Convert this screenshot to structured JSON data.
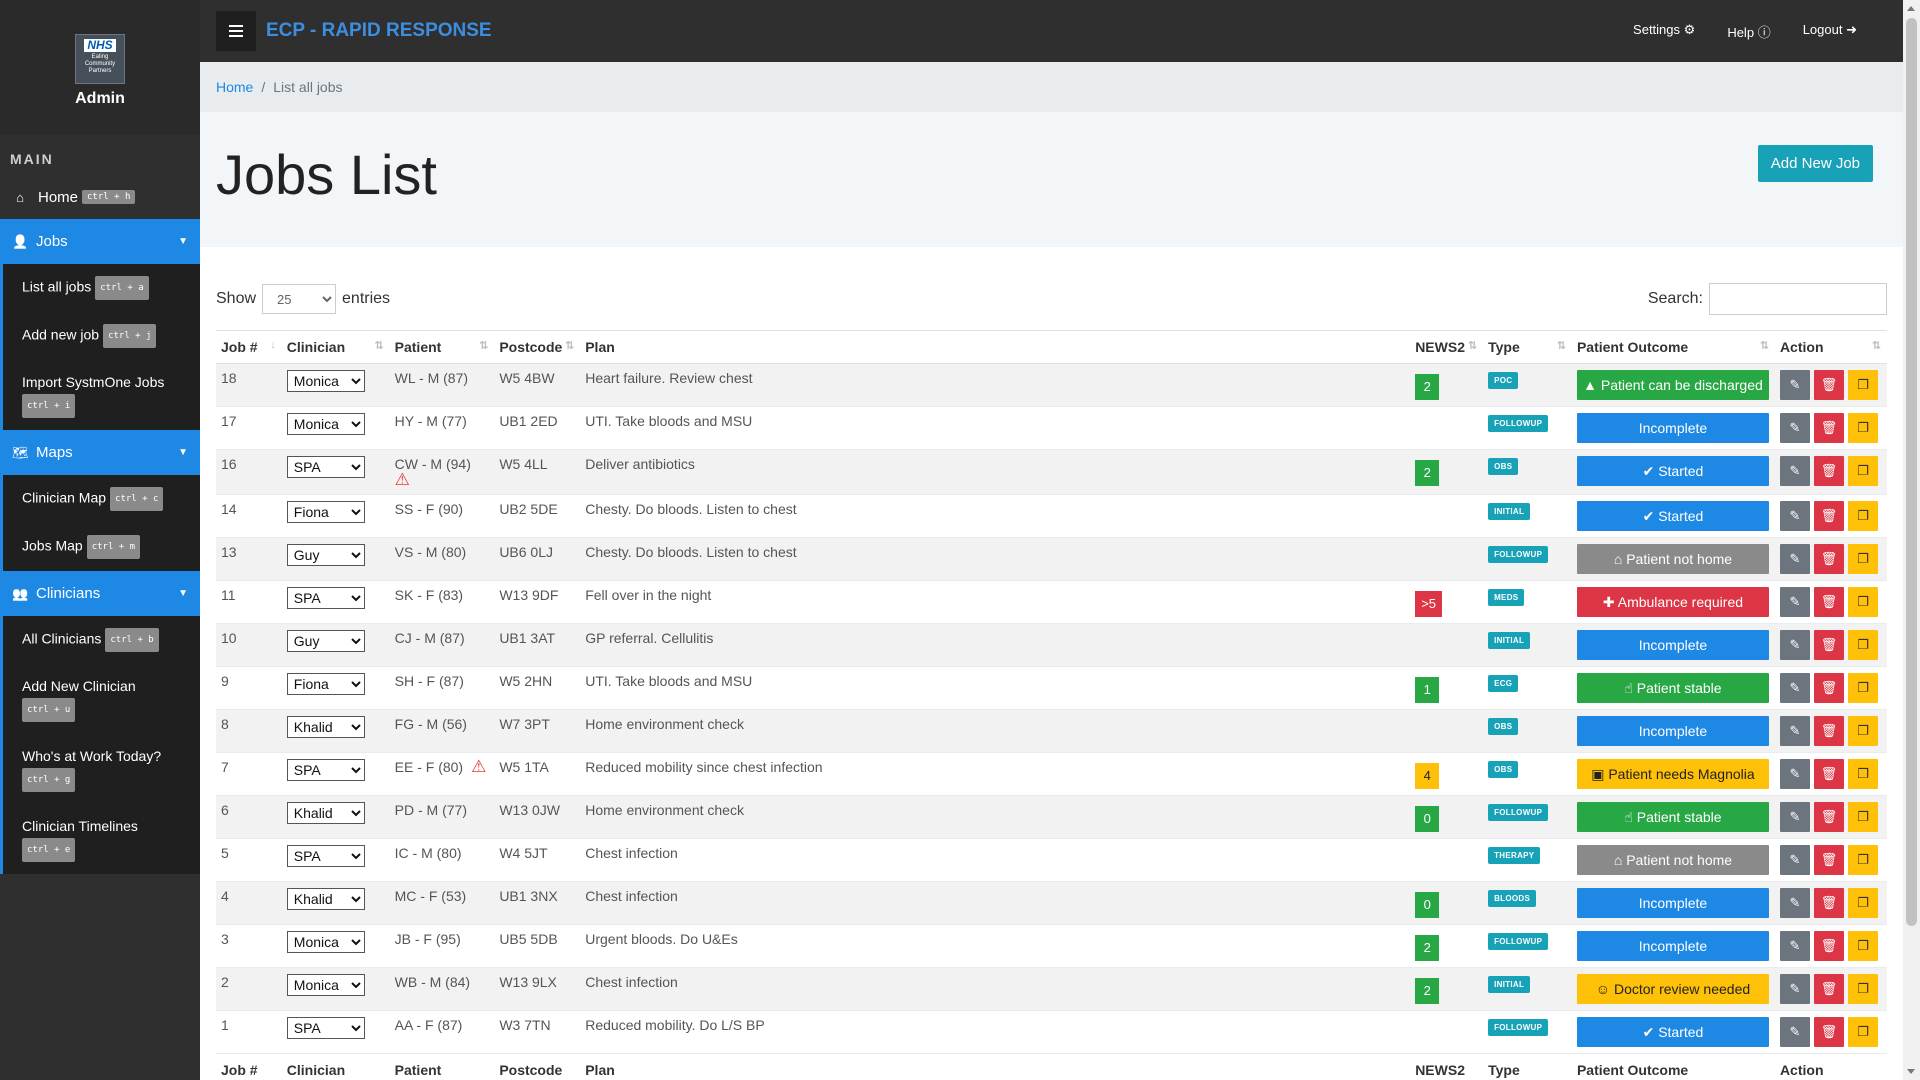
{
  "brand": {
    "logo_text": "NHS",
    "logo_sub": "Ealing Community Partners",
    "role": "Admin"
  },
  "sidebar": {
    "section": "MAIN",
    "home": {
      "label": "Home",
      "shortcut": "ctrl + h"
    },
    "groups": [
      {
        "label": "Jobs",
        "icon": "user-icon",
        "items": [
          {
            "label": "List all jobs",
            "shortcut": "ctrl + a"
          },
          {
            "label": "Add new job",
            "shortcut": "ctrl + j"
          },
          {
            "label": "Import SystmOne Jobs",
            "shortcut": "ctrl + i"
          }
        ]
      },
      {
        "label": "Maps",
        "icon": "map-icon",
        "items": [
          {
            "label": "Clinician Map",
            "shortcut": "ctrl + c"
          },
          {
            "label": "Jobs Map",
            "shortcut": "ctrl + m"
          }
        ]
      },
      {
        "label": "Clinicians",
        "icon": "users-icon",
        "items": [
          {
            "label": "All Clinicians",
            "shortcut": "ctrl + b"
          },
          {
            "label": "Add New Clinician",
            "shortcut": "ctrl + u"
          },
          {
            "label": "Who's at Work Today?",
            "shortcut": "ctrl + g"
          },
          {
            "label": "Clinician Timelines",
            "shortcut": "ctrl + e"
          }
        ]
      }
    ]
  },
  "topbar": {
    "title": "ECP - RAPID RESPONSE",
    "settings": "Settings",
    "help": "Help",
    "logout": "Logout"
  },
  "breadcrumb": {
    "home": "Home",
    "current": "List all jobs"
  },
  "page": {
    "title": "Jobs List",
    "add_button": "Add New Job"
  },
  "controls": {
    "show": "Show",
    "entries_value": "25",
    "entries": "entries",
    "search_label": "Search:",
    "search_value": ""
  },
  "table": {
    "headers": [
      "Job #",
      "Clinician",
      "Patient",
      "Postcode",
      "Plan",
      "NEWS2",
      "Type",
      "Patient Outcome",
      "Action"
    ],
    "rows": [
      {
        "job": "18",
        "clinician": "Monica",
        "patient": "WL - M (87)",
        "warn": false,
        "postcode": "W5 4BW",
        "plan": "Heart failure. Review chest",
        "news2": "2",
        "news2_color": "#28a745",
        "type": "POC",
        "outcome": "Patient can be discharged",
        "outcome_icon": "▲",
        "outcome_color": "#28a745",
        "outcome_text_color": "#ffffff"
      },
      {
        "job": "17",
        "clinician": "Monica",
        "patient": "HY - M (77)",
        "warn": false,
        "postcode": "UB1 2ED",
        "plan": "UTI. Take bloods and MSU",
        "news2": "",
        "news2_color": "",
        "type": "FOLLOWUP",
        "outcome": "Incomplete",
        "outcome_icon": "",
        "outcome_color": "#1e88e5",
        "outcome_text_color": "#ffffff"
      },
      {
        "job": "16",
        "clinician": "SPA",
        "patient": "CW - M (94)",
        "warn": true,
        "warn_below": true,
        "postcode": "W5 4LL",
        "plan": "Deliver antibiotics",
        "news2": "2",
        "news2_color": "#28a745",
        "type": "OBS",
        "outcome": "Started",
        "outcome_icon": "✔",
        "outcome_color": "#1e88e5",
        "outcome_text_color": "#ffffff"
      },
      {
        "job": "14",
        "clinician": "Fiona",
        "patient": "SS - F (90)",
        "warn": false,
        "postcode": "UB2 5DE",
        "plan": "Chesty. Do bloods. Listen to chest",
        "news2": "",
        "news2_color": "",
        "type": "INITIAL",
        "outcome": "Started",
        "outcome_icon": "✔",
        "outcome_color": "#1e88e5",
        "outcome_text_color": "#ffffff"
      },
      {
        "job": "13",
        "clinician": "Guy",
        "patient": "VS - M (80)",
        "warn": false,
        "postcode": "UB6 0LJ",
        "plan": "Chesty. Do bloods. Listen to chest",
        "news2": "",
        "news2_color": "",
        "type": "FOLLOWUP",
        "outcome": "Patient not home",
        "outcome_icon": "⌂",
        "outcome_color": "#8a8a8a",
        "outcome_text_color": "#ffffff"
      },
      {
        "job": "11",
        "clinician": "SPA",
        "patient": "SK - F (83)",
        "warn": false,
        "postcode": "W13 9DF",
        "plan": "Fell over in the night",
        "news2": ">5",
        "news2_color": "#dc3545",
        "type": "MEDS",
        "outcome": "Ambulance required",
        "outcome_icon": "✚",
        "outcome_color": "#dc3545",
        "outcome_text_color": "#ffffff"
      },
      {
        "job": "10",
        "clinician": "Guy",
        "patient": "CJ - M (87)",
        "warn": false,
        "postcode": "UB1 3AT",
        "plan": "GP referral. Cellulitis",
        "news2": "",
        "news2_color": "",
        "type": "INITIAL",
        "outcome": "Incomplete",
        "outcome_icon": "",
        "outcome_color": "#1e88e5",
        "outcome_text_color": "#ffffff"
      },
      {
        "job": "9",
        "clinician": "Fiona",
        "patient": "SH - F (87)",
        "warn": false,
        "postcode": "W5 2HN",
        "plan": "UTI. Take bloods and MSU",
        "news2": "1",
        "news2_color": "#28a745",
        "type": "ECG",
        "outcome": "Patient stable",
        "outcome_icon": "☝",
        "outcome_color": "#28a745",
        "outcome_text_color": "#ffffff"
      },
      {
        "job": "8",
        "clinician": "Khalid",
        "patient": "FG - M (56)",
        "warn": false,
        "postcode": "W7 3PT",
        "plan": "Home environment check",
        "news2": "",
        "news2_color": "",
        "type": "OBS",
        "outcome": "Incomplete",
        "outcome_icon": "",
        "outcome_color": "#1e88e5",
        "outcome_text_color": "#ffffff"
      },
      {
        "job": "7",
        "clinician": "SPA",
        "patient": "EE - F (80)",
        "warn": true,
        "warn_below": false,
        "postcode": "W5 1TA",
        "plan": "Reduced mobility since chest infection",
        "news2": "4",
        "news2_color": "#ffc107",
        "type": "OBS",
        "outcome": "Patient needs Magnolia",
        "outcome_icon": "▣",
        "outcome_color": "#ffc107",
        "outcome_text_color": "#222222"
      },
      {
        "job": "6",
        "clinician": "Khalid",
        "patient": "PD - M (77)",
        "warn": false,
        "postcode": "W13 0JW",
        "plan": "Home environment check",
        "news2": "0",
        "news2_color": "#28a745",
        "type": "FOLLOWUP",
        "outcome": "Patient stable",
        "outcome_icon": "☝",
        "outcome_color": "#28a745",
        "outcome_text_color": "#ffffff"
      },
      {
        "job": "5",
        "clinician": "SPA",
        "patient": "IC - M (80)",
        "warn": false,
        "postcode": "W4 5JT",
        "plan": "Chest infection",
        "news2": "",
        "news2_color": "",
        "type": "THERAPY",
        "outcome": "Patient not home",
        "outcome_icon": "⌂",
        "outcome_color": "#8a8a8a",
        "outcome_text_color": "#ffffff"
      },
      {
        "job": "4",
        "clinician": "Khalid",
        "patient": "MC - F (53)",
        "warn": false,
        "postcode": "UB1 3NX",
        "plan": "Chest infection",
        "news2": "0",
        "news2_color": "#28a745",
        "type": "BLOODS",
        "outcome": "Incomplete",
        "outcome_icon": "",
        "outcome_color": "#1e88e5",
        "outcome_text_color": "#ffffff"
      },
      {
        "job": "3",
        "clinician": "Monica",
        "patient": "JB - F (95)",
        "warn": false,
        "postcode": "UB5 5DB",
        "plan": "Urgent bloods. Do U&Es",
        "news2": "2",
        "news2_color": "#28a745",
        "type": "FOLLOWUP",
        "outcome": "Incomplete",
        "outcome_icon": "",
        "outcome_color": "#1e88e5",
        "outcome_text_color": "#ffffff"
      },
      {
        "job": "2",
        "clinician": "Monica",
        "patient": "WB - M (84)",
        "warn": false,
        "postcode": "W13 9LX",
        "plan": "Chest infection",
        "news2": "2",
        "news2_color": "#28a745",
        "type": "INITIAL",
        "outcome": "Doctor review needed",
        "outcome_icon": "☺",
        "outcome_color": "#ffc107",
        "outcome_text_color": "#222222"
      },
      {
        "job": "1",
        "clinician": "SPA",
        "patient": "AA - F (87)",
        "warn": false,
        "postcode": "W3 7TN",
        "plan": "Reduced mobility. Do L/S BP",
        "news2": "",
        "news2_color": "",
        "type": "FOLLOWUP",
        "outcome": "Started",
        "outcome_icon": "✔",
        "outcome_color": "#1e88e5",
        "outcome_text_color": "#ffffff"
      }
    ]
  }
}
